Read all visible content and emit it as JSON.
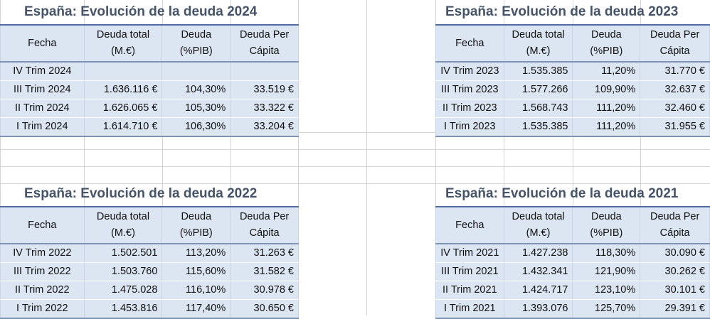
{
  "headers": {
    "fecha": "Fecha",
    "total_1": "Deuda total",
    "total_2": "(M.€)",
    "pib_1": "Deuda",
    "pib_2": "(%PIB)",
    "capita_1": "Deuda Per",
    "capita_2": "Cápita"
  },
  "tables": [
    {
      "title": "España: Evolución de la deuda 2024",
      "rows": [
        {
          "fecha": "IV Trim 2024",
          "total": "",
          "pib": "",
          "capita": ""
        },
        {
          "fecha": "III Trim 2024",
          "total": "1.636.116 €",
          "pib": "104,30%",
          "capita": "33.519 €"
        },
        {
          "fecha": "II Trim 2024",
          "total": "1.626.065 €",
          "pib": "105,30%",
          "capita": "33.322 €"
        },
        {
          "fecha": "I Trim 2024",
          "total": "1.614.710 €",
          "pib": "106,30%",
          "capita": "33.204 €"
        }
      ]
    },
    {
      "title": "España: Evolución de la deuda 2023",
      "rows": [
        {
          "fecha": "IV Trim 2023",
          "total": "1.535.385",
          "pib": "11,20%",
          "capita": "31.770 €"
        },
        {
          "fecha": "III Trim 2023",
          "total": "1.577.266",
          "pib": "109,90%",
          "capita": "32.637 €"
        },
        {
          "fecha": "II Trim 2023",
          "total": "1.568.743",
          "pib": "111,20%",
          "capita": "32.460 €"
        },
        {
          "fecha": "I Trim 2023",
          "total": "1.535.385",
          "pib": "111,20%",
          "capita": "31.955 €"
        }
      ]
    },
    {
      "title": "España: Evolución de la deuda 2022",
      "rows": [
        {
          "fecha": "IV Trim 2022",
          "total": "1.502.501",
          "pib": "113,20%",
          "capita": "31.263 €"
        },
        {
          "fecha": "III Trim 2022",
          "total": "1.503.760",
          "pib": "115,60%",
          "capita": "31.582 €"
        },
        {
          "fecha": "II Trim 2022",
          "total": "1.475.028",
          "pib": "116,10%",
          "capita": "30.978 €"
        },
        {
          "fecha": "I Trim 2022",
          "total": "1.453.816",
          "pib": "117,40%",
          "capita": "30.650 €"
        }
      ]
    },
    {
      "title": "España: Evolución de la deuda 2021",
      "rows": [
        {
          "fecha": "IV Trim 2021",
          "total": "1.427.238",
          "pib": "118,30%",
          "capita": "30.090 €"
        },
        {
          "fecha": "III Trim 2021",
          "total": "1.432.341",
          "pib": "121,90%",
          "capita": "30.262 €"
        },
        {
          "fecha": "II Trim 2021",
          "total": "1.424.717",
          "pib": "123,10%",
          "capita": "30.101 €"
        },
        {
          "fecha": "I Trim 2021",
          "total": "1.393.076",
          "pib": "125,70%",
          "capita": "29.391 €"
        }
      ]
    }
  ]
}
